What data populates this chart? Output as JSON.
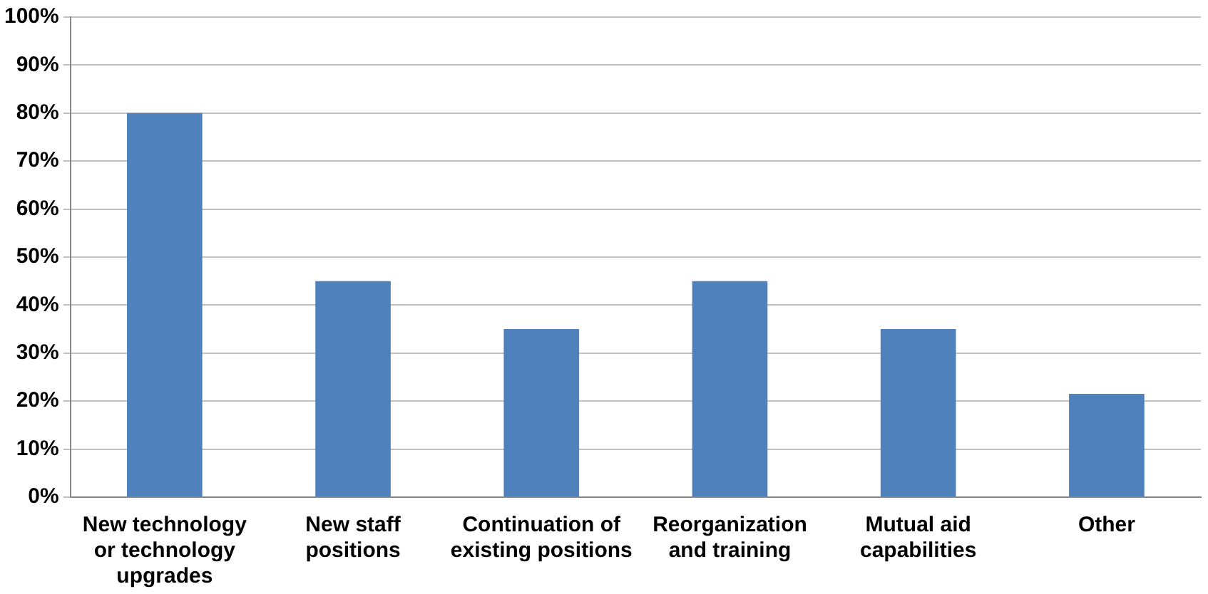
{
  "chart_data": {
    "type": "bar",
    "categories": [
      "New technology or technology upgrades",
      "New staff positions",
      "Continuation of existing positions",
      "Reorganization and training",
      "Mutual aid capabilities",
      "Other"
    ],
    "values": [
      80,
      45,
      35,
      45,
      35,
      21.5
    ],
    "color": "#4f81bd",
    "ylim": [
      0,
      100
    ],
    "yticks": [
      {
        "value": 0,
        "label": "0%"
      },
      {
        "value": 10,
        "label": "10%"
      },
      {
        "value": 20,
        "label": "20%"
      },
      {
        "value": 30,
        "label": "30%"
      },
      {
        "value": 40,
        "label": "40%"
      },
      {
        "value": 50,
        "label": "50%"
      },
      {
        "value": 60,
        "label": "60%"
      },
      {
        "value": 70,
        "label": "70%"
      },
      {
        "value": 80,
        "label": "80%"
      },
      {
        "value": 90,
        "label": "90%"
      },
      {
        "value": 100,
        "label": "100%"
      }
    ],
    "grid": "y",
    "legend": false
  }
}
